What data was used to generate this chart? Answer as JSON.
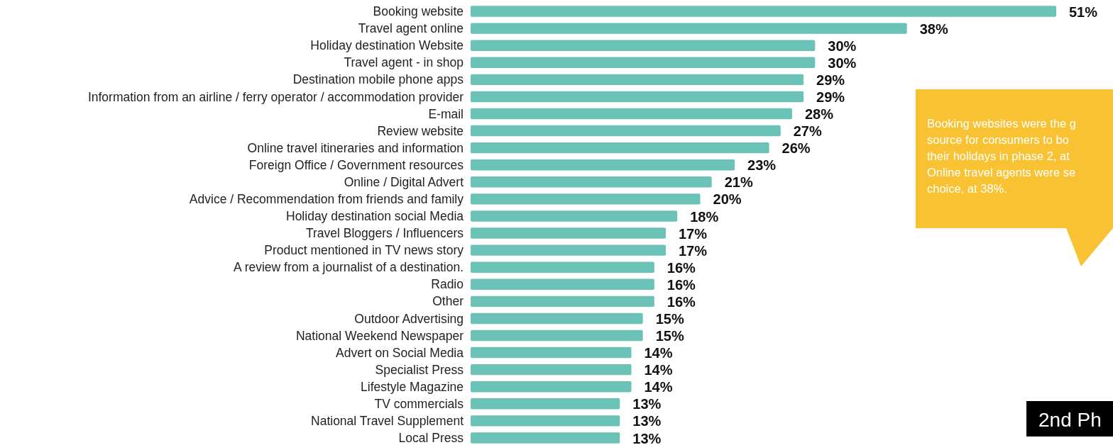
{
  "chart_data": {
    "type": "bar",
    "orientation": "horizontal",
    "data_labels": true,
    "color": "#6bc2b6",
    "categories": [
      "Booking website",
      "Travel agent online",
      "Holiday destination  Website",
      "Travel agent - in shop",
      "Destination mobile phone apps",
      "Information from an airline / ferry operator / accommodation provider",
      "E-mail",
      "Review website",
      "Online travel itineraries and information",
      "Foreign Office / Government resources",
      "Online / Digital Advert",
      "Advice / Recommendation from friends and family",
      "Holiday destination social Media",
      "Travel Bloggers / Influencers",
      "Product mentioned in TV news story",
      "A review from a journalist of a destination.",
      "Radio",
      "Other",
      "Outdoor Advertising",
      "National Weekend Newspaper",
      "Advert on Social Media",
      "Specialist Press",
      "Lifestyle Magazine",
      "TV commercials",
      "National Travel Supplement",
      "Local Press"
    ],
    "values": [
      51,
      38,
      30,
      30,
      29,
      29,
      28,
      27,
      26,
      23,
      21,
      20,
      18,
      17,
      17,
      16,
      16,
      16,
      15,
      15,
      14,
      14,
      14,
      13,
      13,
      13
    ],
    "value_labels": [
      "51%",
      "38%",
      "30%",
      "30%",
      "29%",
      "29%",
      "28%",
      "27%",
      "26%",
      "23%",
      "21%",
      "20%",
      "18%",
      "17%",
      "17%",
      "16%",
      "16%",
      "16%",
      "15%",
      "15%",
      "14%",
      "14%",
      "14%",
      "13%",
      "13%",
      "13%"
    ],
    "annotations": [
      "Booking websites were the g\nsource for consumers to bo\ntheir holidays in phase 2, at\nOnline travel agents were se\nchoice, at 38%.",
      "2nd Ph"
    ]
  }
}
